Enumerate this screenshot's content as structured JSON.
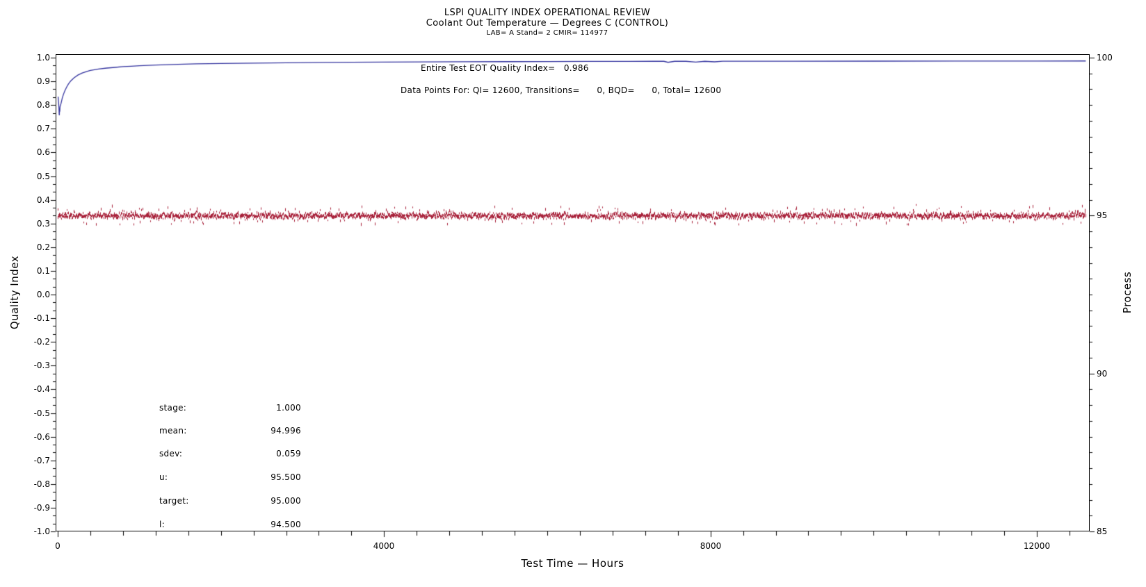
{
  "header": {
    "title": "LSPI QUALITY INDEX OPERATIONAL REVIEW",
    "subtitle": "Coolant Out Temperature — Degrees C (CONTROL)",
    "meta": "LAB= A Stand= 2 CMIR= 114977"
  },
  "annotations": {
    "eot_line": "Entire Test EOT Quality Index=   0.986",
    "datapoints_line": "Data Points For: QI= 12600, Transitions=      0, BQD=      0, Total= 12600"
  },
  "stats": {
    "rows": [
      {
        "label": "stage:",
        "value": "1.000"
      },
      {
        "label": "mean:",
        "value": "94.996"
      },
      {
        "label": "sdev:",
        "value": "0.059"
      },
      {
        "label": "u:",
        "value": "95.500"
      },
      {
        "label": "target:",
        "value": "95.000"
      },
      {
        "label": "l:",
        "value": "94.500"
      }
    ]
  },
  "chart_data": {
    "type": "line",
    "title": "LSPI QUALITY INDEX OPERATIONAL REVIEW",
    "subtitle": "Coolant Out Temperature — Degrees C (CONTROL)",
    "eot_quality_index": 0.986,
    "counts": {
      "qi": 12600,
      "transitions": 0,
      "bqd": 0,
      "total": 12600
    },
    "grid": false,
    "x_axis": {
      "label": "Test Time — Hours",
      "min": 0,
      "max": 12648,
      "major_ticks": [
        0,
        4000,
        8000,
        12000
      ],
      "major_tick_labels": [
        "0",
        "4000",
        "8000",
        "12000"
      ],
      "minor_step": 400
    },
    "y_left_axis": {
      "label": "Quality Index",
      "min": -1.0,
      "max": 1.0,
      "major_step": 0.1,
      "minor_per_major": 2,
      "major_tick_labels": [
        "1.0",
        "0.9",
        "0.8",
        "0.7",
        "0.6",
        "0.5",
        "0.4",
        "0.3",
        "0.2",
        "0.1",
        "0.0",
        "-0.1",
        "-0.2",
        "-0.3",
        "-0.4",
        "-0.5",
        "-0.6",
        "-0.7",
        "-0.8",
        "-0.9",
        "-1.0"
      ],
      "major_tick_values": [
        1.0,
        0.9,
        0.8,
        0.7,
        0.6,
        0.5,
        0.4,
        0.3,
        0.2,
        0.1,
        0.0,
        -0.1,
        -0.2,
        -0.3,
        -0.4,
        -0.5,
        -0.6,
        -0.7,
        -0.8,
        -0.9,
        -1.0
      ]
    },
    "y_right_axis": {
      "label": "Process",
      "min": 85,
      "max": 100,
      "minor_step": 0.5,
      "major_tick_labels": [
        "100",
        "95",
        "90",
        "85"
      ],
      "major_tick_values": [
        100,
        95,
        90,
        85
      ]
    },
    "series": [
      {
        "name": "quality-index-line",
        "type": "line",
        "axis": "left",
        "color": "#32329E",
        "points": [
          [
            5,
            0.835
          ],
          [
            10,
            0.813
          ],
          [
            15,
            0.788
          ],
          [
            18,
            0.762
          ],
          [
            20,
            0.757
          ],
          [
            22,
            0.785
          ],
          [
            25,
            0.772
          ],
          [
            28,
            0.792
          ],
          [
            40,
            0.806
          ],
          [
            55,
            0.828
          ],
          [
            70,
            0.845
          ],
          [
            90,
            0.862
          ],
          [
            110,
            0.876
          ],
          [
            130,
            0.888
          ],
          [
            160,
            0.902
          ],
          [
            200,
            0.915
          ],
          [
            250,
            0.927
          ],
          [
            300,
            0.935
          ],
          [
            350,
            0.941
          ],
          [
            400,
            0.946
          ],
          [
            500,
            0.952
          ],
          [
            600,
            0.956
          ],
          [
            700,
            0.959
          ],
          [
            800,
            0.962
          ],
          [
            900,
            0.964
          ],
          [
            1000,
            0.966
          ],
          [
            1200,
            0.969
          ],
          [
            1400,
            0.971
          ],
          [
            1700,
            0.974
          ],
          [
            2000,
            0.9755
          ],
          [
            2400,
            0.977
          ],
          [
            2800,
            0.9785
          ],
          [
            3200,
            0.9797
          ],
          [
            3600,
            0.9806
          ],
          [
            4000,
            0.9813
          ],
          [
            4500,
            0.982
          ],
          [
            5000,
            0.9826
          ],
          [
            5500,
            0.9832
          ],
          [
            6000,
            0.9837
          ],
          [
            6500,
            0.9841
          ],
          [
            7000,
            0.9844
          ],
          [
            7300,
            0.9846
          ],
          [
            7430,
            0.9846
          ],
          [
            7480,
            0.9802
          ],
          [
            7560,
            0.9846
          ],
          [
            7700,
            0.9846
          ],
          [
            7820,
            0.9815
          ],
          [
            7930,
            0.9846
          ],
          [
            8050,
            0.9824
          ],
          [
            8150,
            0.9848
          ],
          [
            8400,
            0.985
          ],
          [
            9000,
            0.9852
          ],
          [
            10000,
            0.9854
          ],
          [
            11000,
            0.9855
          ],
          [
            12000,
            0.9857
          ],
          [
            12600,
            0.986
          ]
        ]
      },
      {
        "name": "process-temperature-band",
        "type": "scatter-dash",
        "axis": "right",
        "color": "#A8213A",
        "mean": 94.996,
        "sdev": 0.059,
        "n_points": 12600,
        "t_min": 0,
        "t_max": 12600,
        "target": 95.0,
        "upper_limit": 95.5,
        "lower_limit": 94.5,
        "stage": 1.0
      }
    ]
  }
}
